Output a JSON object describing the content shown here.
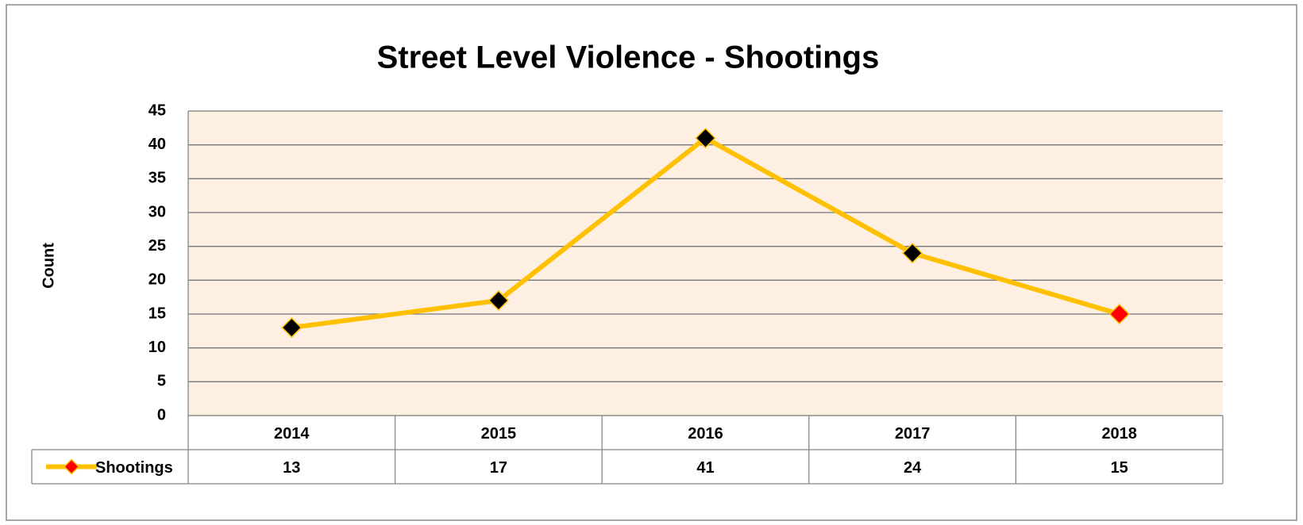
{
  "chart_data": {
    "type": "line",
    "title": "Street Level Violence - Shootings",
    "y_label": "Count",
    "categories": [
      "2014",
      "2015",
      "2016",
      "2017",
      "2018"
    ],
    "series": [
      {
        "name": "Shootings",
        "color": "#ffc000",
        "marker_colors": [
          "#000000",
          "#000000",
          "#000000",
          "#000000",
          "#ff0000"
        ],
        "values": [
          13,
          17,
          41,
          24,
          15
        ]
      }
    ],
    "ylim": [
      0,
      45
    ],
    "yticks": [
      0,
      5,
      10,
      15,
      20,
      25,
      30,
      35,
      40,
      45
    ],
    "grid": true,
    "data_table": true
  }
}
